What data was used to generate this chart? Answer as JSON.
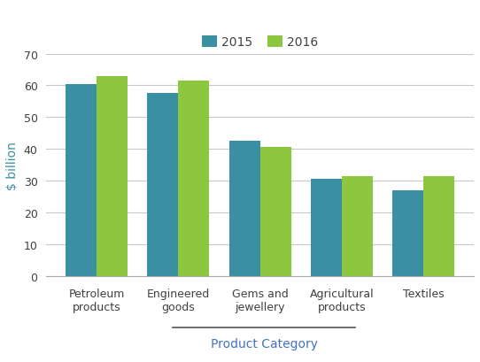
{
  "categories": [
    "Petroleum\nproducts",
    "Engineered\ngoods",
    "Gems and\njewellery",
    "Agricultural\nproducts",
    "Textiles"
  ],
  "values_2015": [
    60.5,
    57.5,
    42.5,
    30.5,
    27.0
  ],
  "values_2016": [
    63.0,
    61.5,
    40.5,
    31.5,
    31.5
  ],
  "color_2015": "#3a8fa3",
  "color_2016": "#8dc63f",
  "ylabel": "$ billion",
  "xlabel": "Product Category",
  "ylim": [
    0,
    70
  ],
  "yticks": [
    0,
    10,
    20,
    30,
    40,
    50,
    60,
    70
  ],
  "legend_labels": [
    "2015",
    "2016"
  ],
  "bar_width": 0.38,
  "figsize": [
    5.42,
    4.1
  ],
  "dpi": 100,
  "xlabel_color": "#4472c4",
  "ylabel_color": "#3a8fa3",
  "tick_label_color": "#404040",
  "grid_color": "#c8c8c8",
  "bg_color": "#ffffff"
}
